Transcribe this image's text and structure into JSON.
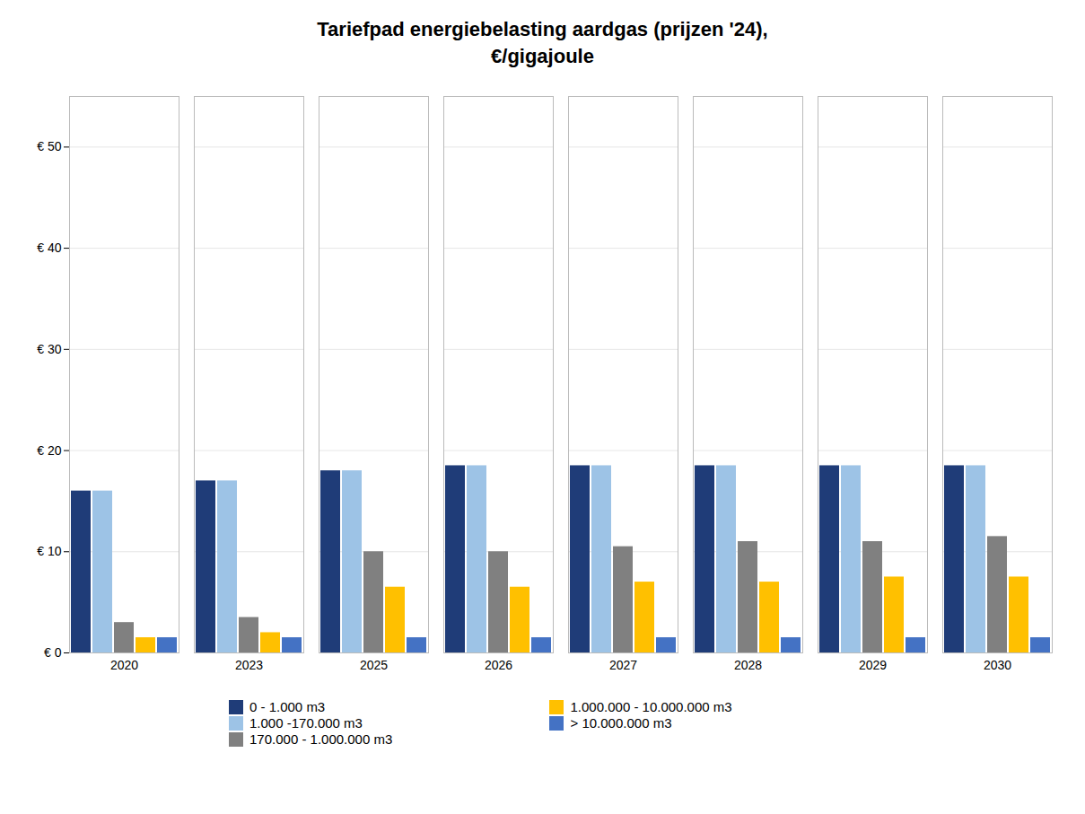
{
  "chart_data": {
    "type": "bar",
    "title": "Tariefpad energiebelasting aardgas (prijzen '24),\n€/gigajoule",
    "categories": [
      "2020",
      "2023",
      "2025",
      "2026",
      "2027",
      "2028",
      "2029",
      "2030"
    ],
    "series": [
      {
        "name": "0 - 1.000 m3",
        "color": "#1F3C78",
        "values": [
          16.0,
          17.0,
          18.0,
          18.5,
          18.5,
          18.5,
          18.5,
          18.5
        ]
      },
      {
        "name": "1.000 -170.000 m3",
        "color": "#9DC3E6",
        "values": [
          16.0,
          17.0,
          18.0,
          18.5,
          18.5,
          18.5,
          18.5,
          18.5
        ]
      },
      {
        "name": "170.000 - 1.000.000 m3",
        "color": "#808080",
        "values": [
          3.0,
          3.5,
          10.0,
          10.0,
          10.5,
          11.0,
          11.0,
          11.5
        ]
      },
      {
        "name": "1.000.000 - 10.000.000 m3",
        "color": "#FFC000",
        "values": [
          1.5,
          2.0,
          6.5,
          6.5,
          7.0,
          7.0,
          7.5,
          7.5
        ]
      },
      {
        "name": "> 10.000.000 m3",
        "color": "#4472C4",
        "values": [
          1.5,
          1.5,
          1.5,
          1.5,
          1.5,
          1.5,
          1.5,
          1.5
        ]
      }
    ],
    "ylim": [
      0,
      55
    ],
    "yticks": [
      {
        "value": 0,
        "label": "€ 0"
      },
      {
        "value": 10,
        "label": "€ 10"
      },
      {
        "value": 20,
        "label": "€ 20"
      },
      {
        "value": 30,
        "label": "€ 30"
      },
      {
        "value": 40,
        "label": "€ 40"
      },
      {
        "value": 50,
        "label": "€ 50"
      }
    ],
    "grid": true,
    "legend": "bottom"
  }
}
